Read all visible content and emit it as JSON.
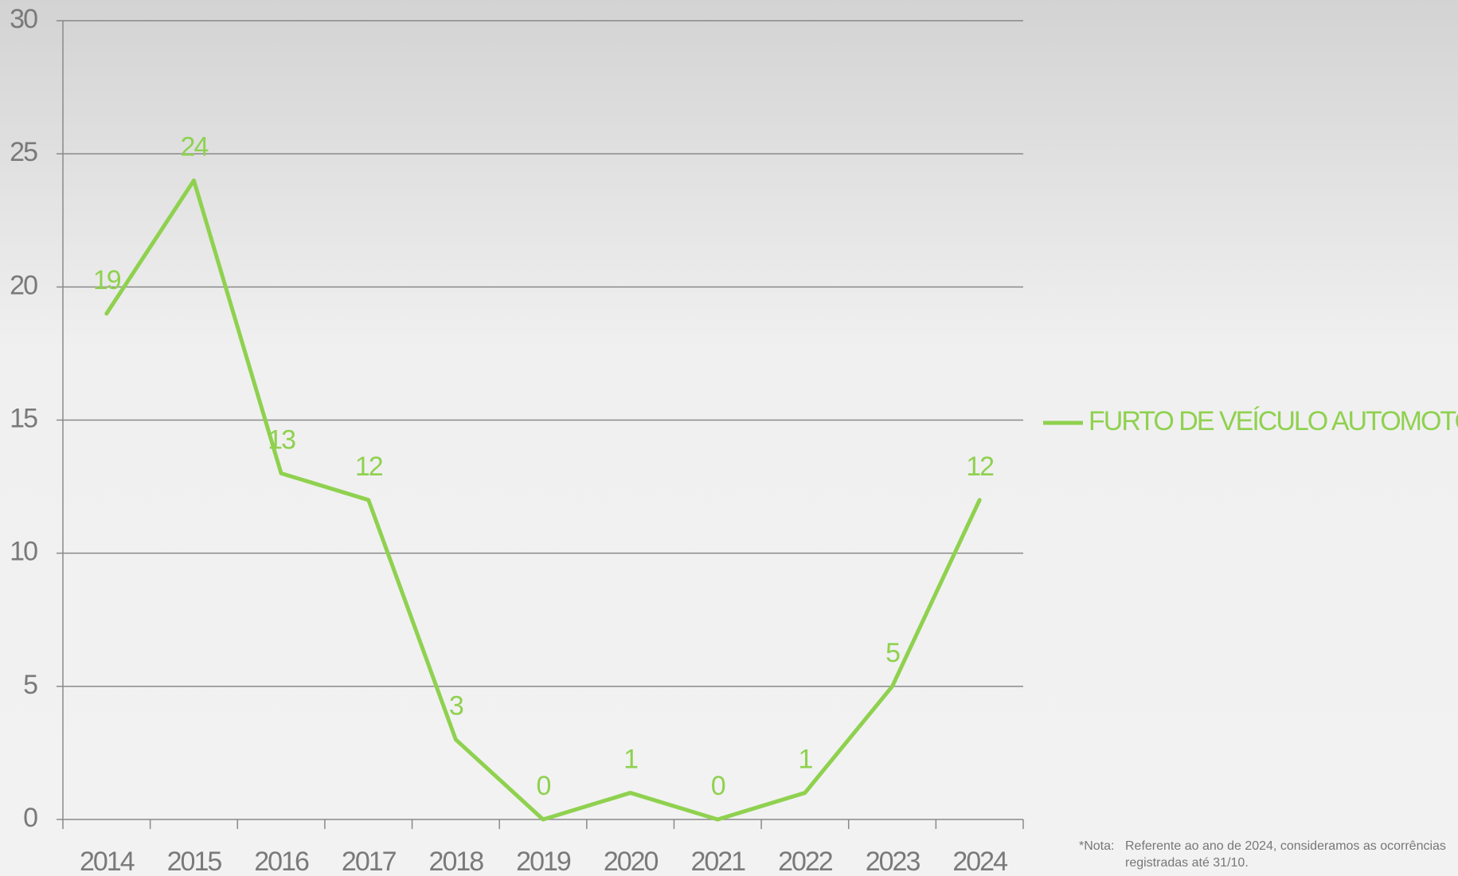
{
  "chart_data": {
    "type": "line",
    "categories": [
      "2014",
      "2015",
      "2016",
      "2017",
      "2018",
      "2019",
      "2020",
      "2021",
      "2022",
      "2023",
      "2024"
    ],
    "series": [
      {
        "name": "FURTO DE VEÍCULO AUTOMOTOR",
        "color": "#8fd14f",
        "values": [
          19,
          24,
          13,
          12,
          3,
          0,
          1,
          0,
          1,
          5,
          12
        ]
      }
    ],
    "ylim": [
      0,
      30
    ],
    "yticks": [
      0,
      5,
      10,
      15,
      20,
      25,
      30
    ],
    "grid": true,
    "legend": "right",
    "note": {
      "label": "*Nota:",
      "lines": [
        "Referente ao ano de 2024, consideramos as  ocorrências",
        "registradas até 31/10."
      ]
    }
  }
}
